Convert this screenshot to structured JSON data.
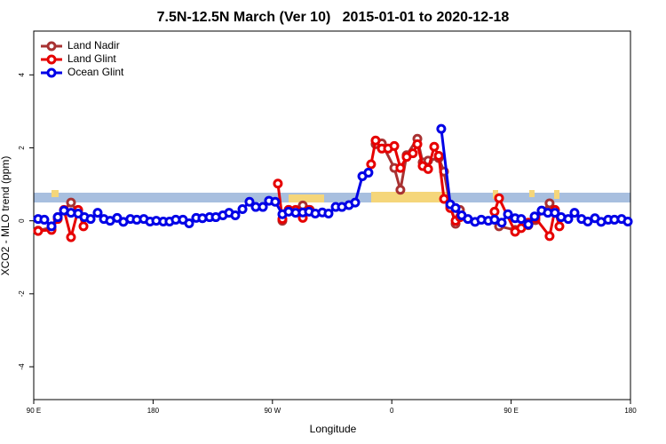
{
  "chart_data": {
    "type": "line",
    "title": "7.5N-12.5N March (Ver 10)   2015-01-01 to 2020-12-18",
    "xlabel": "Longitude",
    "ylabel": "XCO2 - MLO trend (ppm)",
    "xlim": [
      90,
      540
    ],
    "ylim": [
      -4.9,
      5.2
    ],
    "xticks": [
      {
        "value": 90,
        "label": "90 E"
      },
      180,
      {
        "value": 270,
        "label": "90 W"
      },
      {
        "value": 360,
        "label": "0"
      },
      {
        "value": 450,
        "label": "90 E"
      },
      {
        "value": 540,
        "label": "180"
      }
    ],
    "yticks": [
      -4,
      -2,
      0,
      2,
      4
    ],
    "legend": "top-left",
    "series": [
      {
        "name": "Land Nadir",
        "color": "#a83232",
        "x": [
          93.3,
          103.4,
          108.1,
          118.1,
          123.5,
          200,
          277.5,
          282.2,
          292.9,
          298.2,
          330,
          347.8,
          352.5,
          361.9,
          366.5,
          371.2,
          379.3,
          383.3,
          387.4,
          395.4,
          399.4,
          404.1,
          408.1,
          411.4,
          425,
          440.9,
          453,
          463,
          468.3,
          479,
          483
        ],
        "values": [
          -0.27,
          -0.18,
          0.1,
          0.5,
          0.22,
          null,
          0,
          0.3,
          0.42,
          0.3,
          null,
          2.1,
          2.12,
          1.45,
          0.85,
          1.8,
          2.25,
          1.6,
          1.65,
          1.72,
          1.35,
          0.4,
          -0.08,
          0.3,
          null,
          -0.15,
          -0.25,
          -0.12,
          0.02,
          0.48,
          0.3
        ]
      },
      {
        "name": "Land Glint",
        "color": "#e60000",
        "x": [
          93.3,
          103.4,
          108.1,
          112.8,
          118.1,
          123.5,
          127.5,
          200,
          274.1,
          277.5,
          282.2,
          287.5,
          292.9,
          297.6,
          330,
          344.4,
          347.8,
          352.5,
          357.2,
          361.9,
          366.5,
          371.2,
          375.9,
          379.3,
          383.3,
          387.4,
          392,
          395.4,
          399.4,
          404.1,
          408.1,
          411.4,
          425,
          437.5,
          440.9,
          453,
          457.6,
          463,
          468.3,
          479,
          483,
          486.4
        ],
        "values": [
          -0.28,
          -0.25,
          0.05,
          0.3,
          -0.45,
          0.3,
          -0.15,
          null,
          1.02,
          0.05,
          0.3,
          0.3,
          0.08,
          0.3,
          null,
          1.55,
          2.2,
          1.98,
          1.98,
          2.05,
          1.45,
          1.75,
          1.85,
          2.1,
          1.5,
          1.42,
          2.03,
          1.78,
          0.6,
          0.35,
          0,
          0.1,
          null,
          0.25,
          0.62,
          -0.3,
          -0.2,
          -0.05,
          0.08,
          -0.42,
          0.3,
          -0.15
        ]
      },
      {
        "name": "Ocean Glint",
        "color": "#0000e6",
        "x": [
          93.3,
          98,
          103.4,
          108.1,
          112.8,
          118.1,
          123.5,
          128.2,
          132.9,
          138.2,
          142.9,
          147.6,
          152.9,
          157.6,
          162.9,
          167.7,
          173,
          177.7,
          182.4,
          187.7,
          192.4,
          197.1,
          202.5,
          207.2,
          212.5,
          217.2,
          222.6,
          227.3,
          232.6,
          237.3,
          242,
          247.4,
          252.7,
          257.4,
          262.8,
          267.4,
          272.1,
          277.5,
          282.2,
          287.5,
          292.9,
          297.6,
          302.3,
          307.6,
          312.3,
          317.7,
          322.4,
          327.7,
          332.4,
          337.8,
          342.4,
          370,
          397.3,
          404.1,
          408.1,
          412.7,
          417.4,
          422.8,
          427.5,
          432.8,
          437.5,
          442.9,
          447.6,
          453,
          457.6,
          463,
          467.7,
          473,
          477.7,
          483,
          487.7,
          493.1,
          497.8,
          503.1,
          507.8,
          513.2,
          517.9,
          523.2,
          527.9,
          533.3,
          538
        ],
        "values": [
          0.05,
          0.03,
          -0.15,
          0.1,
          0.28,
          0.22,
          0.2,
          0.1,
          0.05,
          0.22,
          0.05,
          0,
          0.08,
          -0.03,
          0.05,
          0.03,
          0.05,
          -0.02,
          0,
          -0.02,
          -0.02,
          0.03,
          0.03,
          -0.07,
          0.08,
          0.07,
          0.1,
          0.1,
          0.15,
          0.22,
          0.15,
          0.32,
          0.52,
          0.38,
          0.38,
          0.55,
          0.52,
          0.18,
          0.25,
          0.22,
          0.23,
          0.25,
          0.2,
          0.23,
          0.2,
          0.38,
          0.38,
          0.43,
          0.5,
          1.22,
          1.32,
          null,
          2.52,
          0.45,
          0.35,
          0.15,
          0.05,
          -0.03,
          0.03,
          0,
          0.03,
          -0.05,
          0.18,
          0.07,
          0.05,
          -0.1,
          0.12,
          0.28,
          0.22,
          0.22,
          0.1,
          0.05,
          0.22,
          0.05,
          -0.02,
          0.07,
          -0.03,
          0.03,
          0.03,
          0.05,
          -0.02
        ]
      }
    ]
  }
}
